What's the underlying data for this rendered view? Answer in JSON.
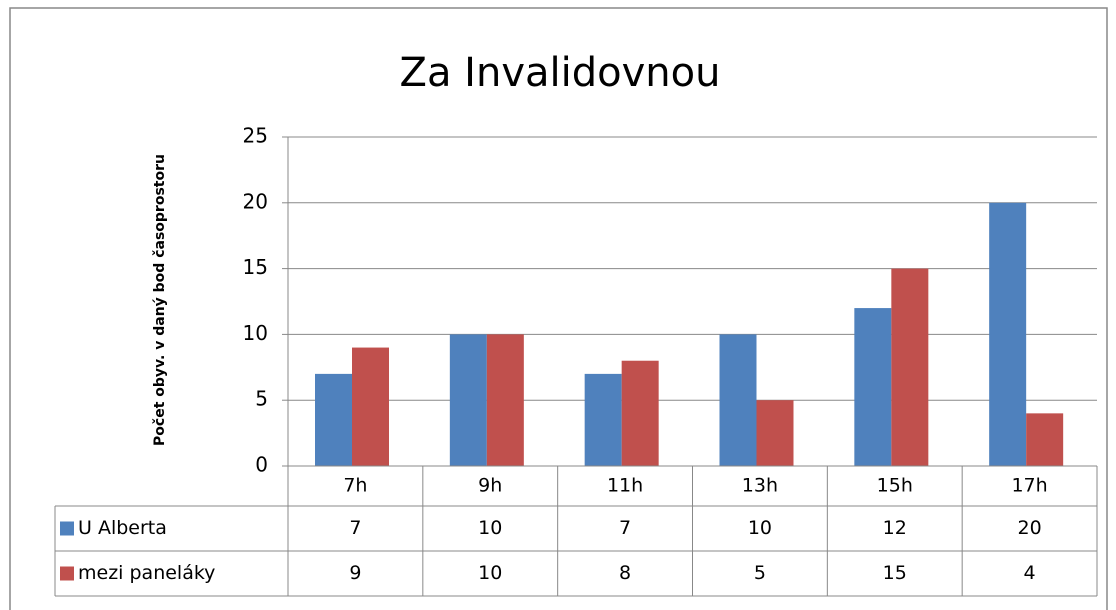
{
  "chart_data": {
    "type": "bar",
    "title": "Za Invalidovnou",
    "y_label": "Počet obyv. v daný bod časoprostoru",
    "categories": [
      "7h",
      "9h",
      "11h",
      "13h",
      "15h",
      "17h"
    ],
    "series": [
      {
        "name": "U Alberta",
        "color": "#4f81bd",
        "values": [
          7,
          10,
          7,
          10,
          12,
          20
        ]
      },
      {
        "name": "mezi paneláky",
        "color": "#c0504d",
        "values": [
          9,
          10,
          8,
          5,
          15,
          4
        ]
      }
    ],
    "ylim": [
      0,
      25
    ],
    "yticks": [
      0,
      5,
      10,
      15,
      20,
      25
    ],
    "grid": true,
    "data_table": true
  }
}
